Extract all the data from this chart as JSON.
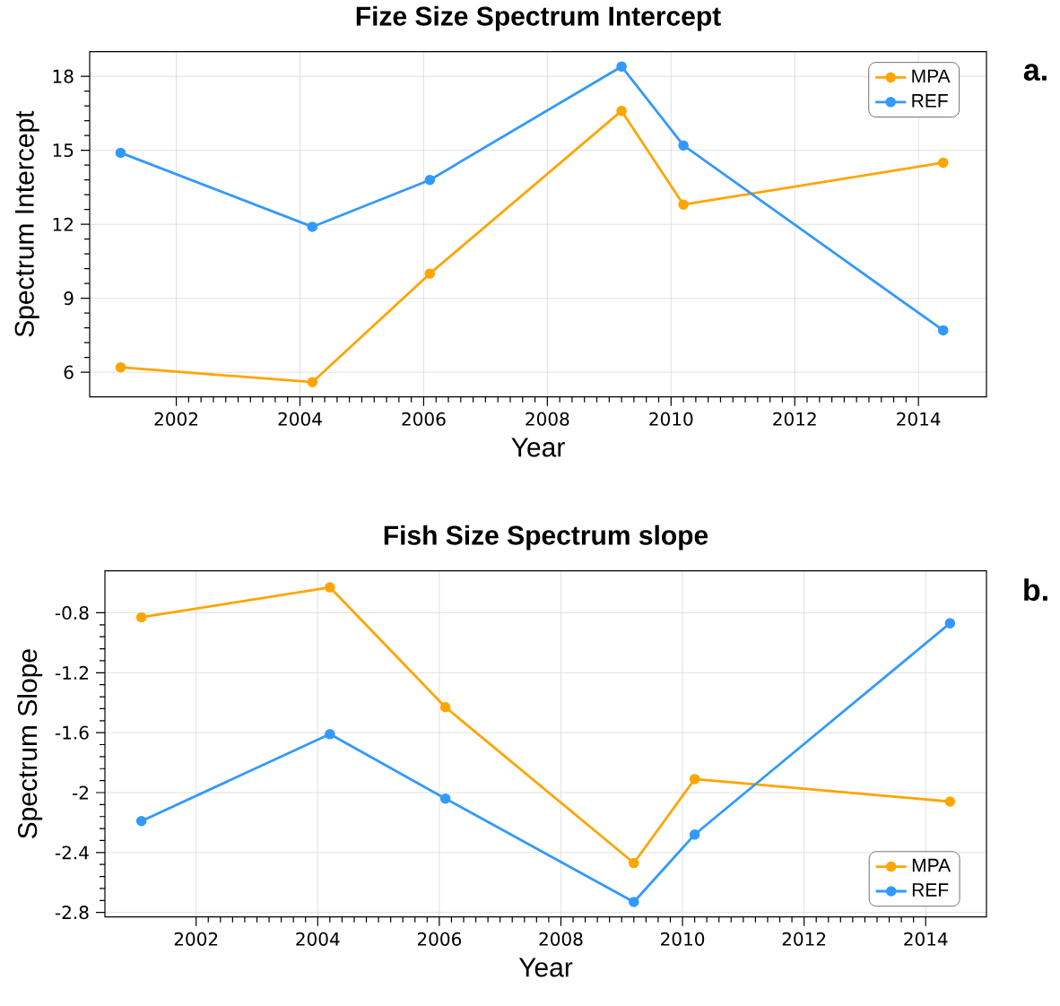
{
  "chart_data": [
    {
      "type": "line",
      "title": "Fize Size Spectrum Intercept",
      "xlabel": "Year",
      "ylabel": "Spectrum Intercept",
      "x": [
        2001.1,
        2004.2,
        2006.1,
        2009.2,
        2010.2,
        2014.4
      ],
      "series": [
        {
          "name": "MPA",
          "color": "#ffa500",
          "values": [
            6.2,
            5.6,
            10,
            16.6,
            12.8,
            14.5
          ]
        },
        {
          "name": "REF",
          "color": "#3399ff",
          "values": [
            14.9,
            11.9,
            13.8,
            18.4,
            15.2,
            7.7
          ]
        }
      ],
      "xlim": [
        2000.6,
        2015.1
      ],
      "ylim": [
        5,
        19
      ],
      "xticks": [
        2002,
        2004,
        2006,
        2008,
        2010,
        2012,
        2014
      ],
      "yticks": [
        6,
        9,
        12,
        15,
        18
      ],
      "grid": true,
      "legend": "top right",
      "marker": "circle",
      "line_style": "solid",
      "annotations": [
        "a."
      ]
    },
    {
      "type": "line",
      "title": "Fish Size Spectrum slope",
      "xlabel": "Year",
      "ylabel": "Spectrum Slope",
      "x": [
        2001.1,
        2004.2,
        2006.1,
        2009.2,
        2010.2,
        2014.4
      ],
      "series": [
        {
          "name": "MPA",
          "color": "#ffa500",
          "values": [
            -0.83,
            -0.63,
            -1.43,
            -2.47,
            -1.91,
            -2.06
          ]
        },
        {
          "name": "REF",
          "color": "#3399ff",
          "values": [
            -2.19,
            -1.61,
            -2.04,
            -2.73,
            -2.28,
            -0.87
          ]
        }
      ],
      "xlim": [
        2000.5,
        2015.0
      ],
      "ylim": [
        -2.83,
        -0.52
      ],
      "xticks": [
        2002,
        2004,
        2006,
        2008,
        2010,
        2012,
        2014
      ],
      "yticks": [
        -0.8,
        -1.2,
        -1.6,
        -2,
        -2.4,
        -2.8
      ],
      "grid": true,
      "legend": "bottom right",
      "marker": "circle",
      "line_style": "solid",
      "annotations": [
        "b."
      ]
    }
  ]
}
